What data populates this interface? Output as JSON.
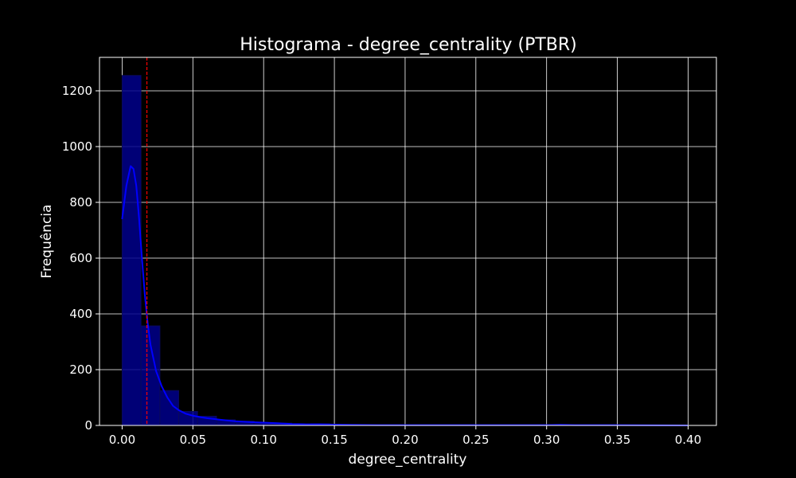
{
  "chart_data": {
    "type": "bar",
    "subtype": "histogram",
    "title": "Histograma - degree_centrality (PTBR)",
    "xlabel": "degree_centrality",
    "ylabel": "Frequência",
    "xlim": [
      -0.016,
      0.42
    ],
    "ylim": [
      0,
      1320
    ],
    "xticks": [
      0.0,
      0.05,
      0.1,
      0.15,
      0.2,
      0.25,
      0.3,
      0.35,
      0.4
    ],
    "xtick_labels": [
      "0.00",
      "0.05",
      "0.10",
      "0.15",
      "0.20",
      "0.25",
      "0.30",
      "0.35",
      "0.40"
    ],
    "yticks": [
      0,
      200,
      400,
      600,
      800,
      1000,
      1200
    ],
    "ytick_labels": [
      "0",
      "200",
      "400",
      "600",
      "800",
      "1000",
      "1200"
    ],
    "grid": true,
    "background": "#000000",
    "bar_color": "#00008b",
    "kde_color": "#0000ff",
    "mean_line_color": "#ff0000",
    "bins": [
      {
        "x0": 0.0,
        "x1": 0.0133,
        "count": 1255
      },
      {
        "x0": 0.0133,
        "x1": 0.0267,
        "count": 357
      },
      {
        "x0": 0.0267,
        "x1": 0.04,
        "count": 125
      },
      {
        "x0": 0.04,
        "x1": 0.0533,
        "count": 50
      },
      {
        "x0": 0.0533,
        "x1": 0.0667,
        "count": 33
      },
      {
        "x0": 0.0667,
        "x1": 0.08,
        "count": 20
      },
      {
        "x0": 0.08,
        "x1": 0.0933,
        "count": 15
      },
      {
        "x0": 0.0933,
        "x1": 0.1067,
        "count": 10
      },
      {
        "x0": 0.1067,
        "x1": 0.12,
        "count": 8
      },
      {
        "x0": 0.12,
        "x1": 0.1333,
        "count": 4
      },
      {
        "x0": 0.1333,
        "x1": 0.1467,
        "count": 6
      },
      {
        "x0": 0.1467,
        "x1": 0.16,
        "count": 3
      },
      {
        "x0": 0.16,
        "x1": 0.1733,
        "count": 2
      },
      {
        "x0": 0.1733,
        "x1": 0.1867,
        "count": 1
      },
      {
        "x0": 0.1867,
        "x1": 0.2,
        "count": 1
      },
      {
        "x0": 0.2,
        "x1": 0.2133,
        "count": 1
      },
      {
        "x0": 0.2133,
        "x1": 0.2267,
        "count": 1
      },
      {
        "x0": 0.2267,
        "x1": 0.24,
        "count": 1
      },
      {
        "x0": 0.24,
        "x1": 0.2533,
        "count": 0
      },
      {
        "x0": 0.2533,
        "x1": 0.2667,
        "count": 1
      },
      {
        "x0": 0.2667,
        "x1": 0.28,
        "count": 1
      },
      {
        "x0": 0.28,
        "x1": 0.2933,
        "count": 0
      },
      {
        "x0": 0.2933,
        "x1": 0.3067,
        "count": 2
      },
      {
        "x0": 0.3067,
        "x1": 0.32,
        "count": 1
      },
      {
        "x0": 0.32,
        "x1": 0.3333,
        "count": 0
      },
      {
        "x0": 0.3333,
        "x1": 0.3467,
        "count": 0
      },
      {
        "x0": 0.3467,
        "x1": 0.36,
        "count": 1
      },
      {
        "x0": 0.36,
        "x1": 0.3733,
        "count": 0
      },
      {
        "x0": 0.3733,
        "x1": 0.3867,
        "count": 0
      },
      {
        "x0": 0.3867,
        "x1": 0.4,
        "count": 1
      }
    ],
    "kde": {
      "x": [
        0.0,
        0.003,
        0.006,
        0.008,
        0.01,
        0.012,
        0.014,
        0.016,
        0.018,
        0.02,
        0.024,
        0.028,
        0.032,
        0.036,
        0.04,
        0.045,
        0.05,
        0.055,
        0.06,
        0.07,
        0.08,
        0.09,
        0.1,
        0.11,
        0.12,
        0.13,
        0.14,
        0.15,
        0.16,
        0.18,
        0.2,
        0.25,
        0.3,
        0.31,
        0.32,
        0.35,
        0.4
      ],
      "y": [
        740,
        860,
        930,
        920,
        860,
        740,
        600,
        470,
        370,
        290,
        195,
        140,
        100,
        70,
        55,
        42,
        35,
        30,
        26,
        20,
        15,
        12,
        10,
        8,
        5,
        4,
        4,
        3,
        2,
        1,
        1,
        1,
        1,
        2,
        1,
        1,
        0
      ]
    },
    "mean_line_x": 0.0175
  }
}
